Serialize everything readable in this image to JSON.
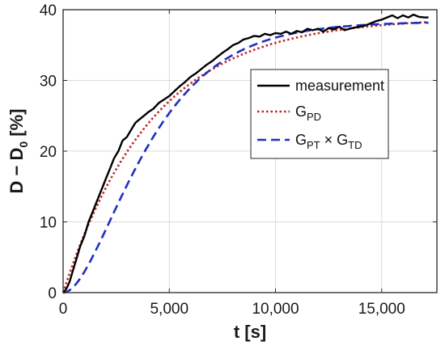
{
  "chart_data": {
    "type": "line",
    "title": "",
    "xlabel": "t [s]",
    "ylabel_main": "D − D",
    "ylabel_sub": "0",
    "ylabel_unit": " [%]",
    "xlim": [
      0,
      17600
    ],
    "ylim": [
      0,
      40
    ],
    "x_ticks": [
      0,
      5000,
      10000,
      15000
    ],
    "x_tick_labels": [
      "0",
      "5,000",
      "10,000",
      "15,000"
    ],
    "y_ticks": [
      0,
      10,
      20,
      30,
      40
    ],
    "y_tick_labels": [
      "0",
      "10",
      "20",
      "30",
      "40"
    ],
    "grid": true,
    "legend_position": "right-middle",
    "series": [
      {
        "name": "measurement",
        "style": "solid",
        "color": "#000000",
        "x": [
          0,
          150,
          300,
          450,
          600,
          800,
          1000,
          1200,
          1400,
          1600,
          1800,
          2000,
          2200,
          2400,
          2600,
          2800,
          3000,
          3200,
          3400,
          3600,
          3800,
          4000,
          4250,
          4500,
          4750,
          5000,
          5250,
          5500,
          5750,
          6000,
          6250,
          6500,
          6750,
          7000,
          7250,
          7500,
          7750,
          8000,
          8250,
          8500,
          8750,
          9000,
          9250,
          9500,
          9750,
          10000,
          10250,
          10500,
          10750,
          11000,
          11250,
          11500,
          11750,
          12000,
          12250,
          12500,
          12750,
          13000,
          13250,
          13500,
          13750,
          14000,
          14250,
          14500,
          14750,
          15000,
          15250,
          15500,
          15750,
          16000,
          16250,
          16500,
          16750,
          17000,
          17200
        ],
        "y": [
          0,
          0.5,
          1.5,
          3,
          4.5,
          6.5,
          8,
          10,
          11.5,
          13,
          14.5,
          16,
          17.5,
          19,
          20,
          21.5,
          22,
          23,
          24,
          24.5,
          25,
          25.5,
          26,
          26.8,
          27.3,
          27.8,
          28.5,
          29.2,
          29.8,
          30.5,
          31,
          31.6,
          32.2,
          32.7,
          33.3,
          33.9,
          34.4,
          35,
          35.3,
          35.8,
          36,
          36.3,
          36.2,
          36.6,
          36.4,
          36.7,
          36.6,
          36.9,
          36.6,
          37,
          36.8,
          37.3,
          37.1,
          37.3,
          36.9,
          37.4,
          37.2,
          37.6,
          37.1,
          37.3,
          37.5,
          37.6,
          37.8,
          38.1,
          38.4,
          38.6,
          38.9,
          39.2,
          38.8,
          39.2,
          38.9,
          39.3,
          39,
          38.9,
          38.9
        ]
      },
      {
        "name": "G",
        "name_sub": "PD",
        "style": "dotted",
        "color": "#c0282a",
        "function": "first-order",
        "k": 38.9,
        "tau": 4200,
        "x_range": [
          0,
          17200
        ]
      },
      {
        "name": "G",
        "name_sub": "PT",
        "name_mid": " × G",
        "name_sub2": "TD",
        "style": "dashed",
        "color": "#1f2fbf",
        "function": "second-order",
        "k": 38.3,
        "tau": 2200,
        "x_range": [
          0,
          17200
        ]
      }
    ]
  }
}
